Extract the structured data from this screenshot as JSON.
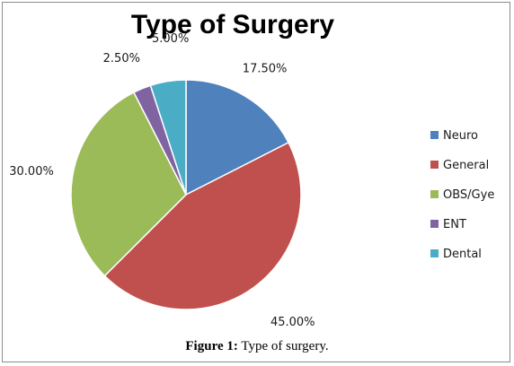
{
  "chart_data": {
    "type": "pie",
    "title": "Type of Surgery",
    "categories": [
      "Neuro",
      "General",
      "OBS/Gye",
      "ENT",
      "Dental"
    ],
    "values": [
      17.5,
      45.0,
      30.0,
      2.5,
      5.0
    ],
    "labels": [
      "17.50%",
      "45.00%",
      "30.00%",
      "2.50%",
      "5.00%"
    ],
    "colors": [
      "#4f81bd",
      "#c0504d",
      "#9bbb59",
      "#8064a2",
      "#4bacc6"
    ],
    "legend_position": "right",
    "start_angle_deg": 0,
    "direction": "clockwise"
  },
  "caption": {
    "figure_label": "Figure 1:",
    "text": " Type of surgery."
  }
}
